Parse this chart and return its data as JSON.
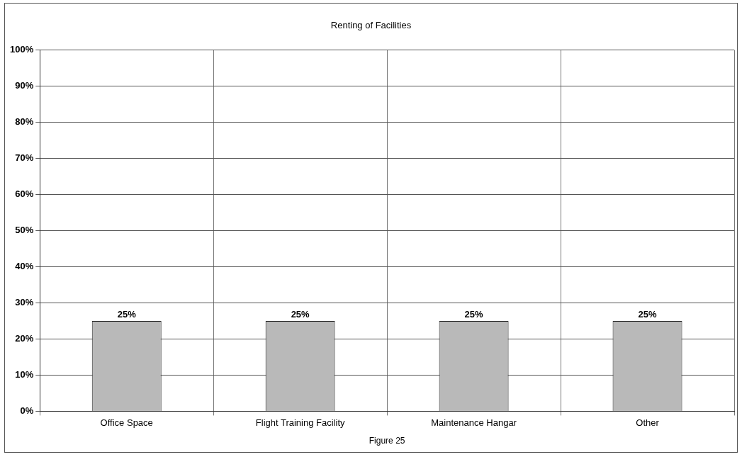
{
  "chart_data": {
    "type": "bar",
    "title": "Renting of Facilities",
    "categories": [
      "Office Space",
      "Flight Training Facility",
      "Maintenance Hangar",
      "Other"
    ],
    "values": [
      25,
      25,
      25,
      25
    ],
    "color": "#b9b9b9",
    "value_labels": [
      "25%",
      "25%",
      "25%",
      "25%"
    ],
    "ylim": [
      0,
      100
    ],
    "yticks": [
      {
        "value": 0,
        "label": "0%"
      },
      {
        "value": 10,
        "label": "10%"
      },
      {
        "value": 20,
        "label": "20%"
      },
      {
        "value": 30,
        "label": "30%"
      },
      {
        "value": 40,
        "label": "40%"
      },
      {
        "value": 50,
        "label": "50%"
      },
      {
        "value": 60,
        "label": "60%"
      },
      {
        "value": 70,
        "label": "70%"
      },
      {
        "value": 80,
        "label": "80%"
      },
      {
        "value": 90,
        "label": "90%"
      },
      {
        "value": 100,
        "label": "100%"
      }
    ],
    "grid": true,
    "legend": false,
    "annotations": [
      "Figure 25"
    ]
  }
}
